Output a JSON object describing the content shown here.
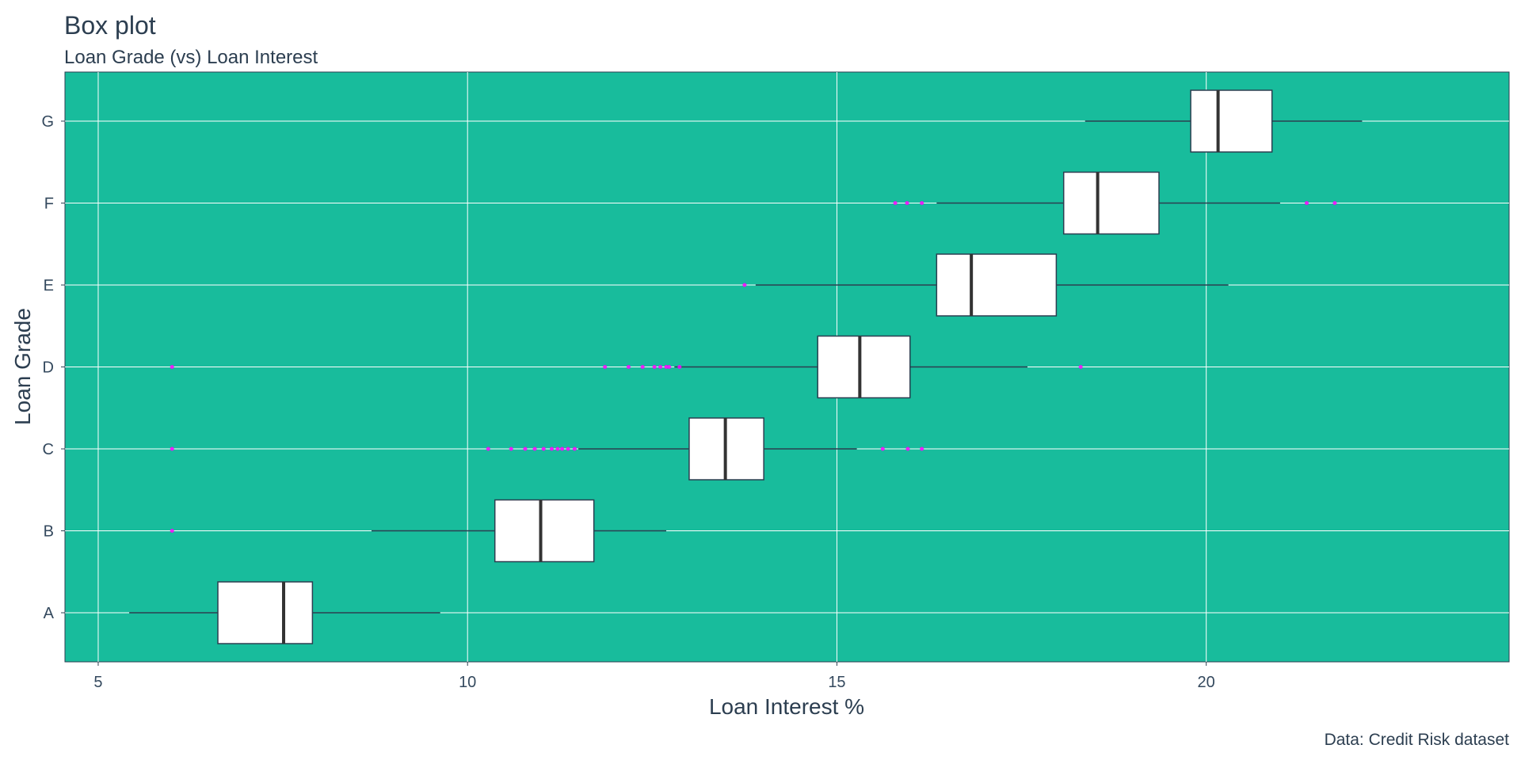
{
  "chart_data": {
    "type": "boxplot",
    "title": "Box plot",
    "subtitle": "Loan Grade (vs) Loan Interest",
    "xlabel": "Loan Interest %",
    "ylabel": "Loan Grade",
    "caption": "Data: Credit Risk dataset",
    "xlim": [
      4.55,
      24.1
    ],
    "x_ticks": [
      5,
      10,
      15,
      20
    ],
    "categories": [
      "A",
      "B",
      "C",
      "D",
      "E",
      "F",
      "G"
    ],
    "grid": true,
    "panel_color": "#18BC9C",
    "box_fill": "#FFFFFF",
    "outlier_color": "#FF00FF",
    "boxes": [
      {
        "category": "A",
        "whisker_low": 5.42,
        "q1": 6.62,
        "median": 7.51,
        "q3": 7.9,
        "whisker_high": 9.63,
        "outliers": []
      },
      {
        "category": "B",
        "whisker_low": 8.7,
        "q1": 10.37,
        "median": 10.99,
        "q3": 11.71,
        "whisker_high": 12.69,
        "outliers": [
          6.0
        ]
      },
      {
        "category": "C",
        "whisker_low": 11.5,
        "q1": 13.0,
        "median": 13.49,
        "q3": 14.01,
        "whisker_high": 15.27,
        "outliers": [
          6.0,
          10.28,
          10.59,
          10.78,
          10.91,
          11.03,
          11.14,
          11.22,
          11.28,
          11.36,
          11.45,
          15.62,
          15.96,
          16.15
        ]
      },
      {
        "category": "D",
        "whisker_low": 12.8,
        "q1": 14.74,
        "median": 15.31,
        "q3": 15.99,
        "whisker_high": 17.58,
        "outliers": [
          6.0,
          11.86,
          12.18,
          12.37,
          12.53,
          12.61,
          12.69,
          12.73,
          12.87,
          18.3
        ]
      },
      {
        "category": "E",
        "whisker_low": 13.9,
        "q1": 16.35,
        "median": 16.82,
        "q3": 17.97,
        "whisker_high": 20.3,
        "outliers": [
          13.75
        ]
      },
      {
        "category": "F",
        "whisker_low": 16.35,
        "q1": 18.07,
        "median": 18.53,
        "q3": 19.36,
        "whisker_high": 21.0,
        "outliers": [
          15.79,
          15.95,
          16.15,
          21.36,
          21.74
        ]
      },
      {
        "category": "G",
        "whisker_low": 18.36,
        "q1": 19.79,
        "median": 20.16,
        "q3": 20.89,
        "whisker_high": 22.11,
        "outliers": []
      }
    ]
  }
}
